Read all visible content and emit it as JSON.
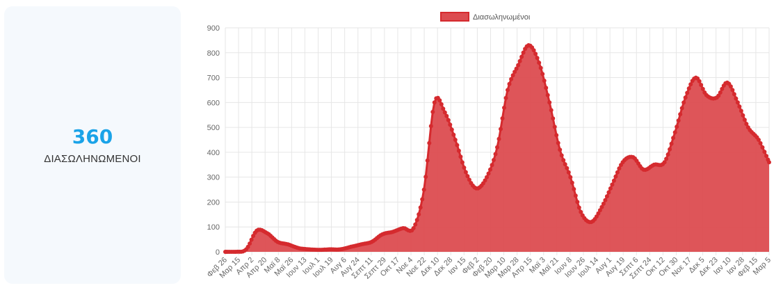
{
  "stat": {
    "value": "360",
    "label": "ΔΙΑΣΩΛΗΝΩΜΕΝΟΙ"
  },
  "colors": {
    "accent": "#1aa3e8",
    "series_fill": "#dc4c50",
    "series_line": "#d52a2e",
    "grid": "#e6e6e6"
  },
  "chart_data": {
    "type": "area",
    "title": "",
    "xlabel": "",
    "ylabel": "",
    "ylim": [
      0,
      900
    ],
    "y_ticks": [
      0,
      100,
      200,
      300,
      400,
      500,
      600,
      700,
      800,
      900
    ],
    "grid": true,
    "legend_position": "top-center",
    "x_tick_labels": [
      "Φεβ 26",
      "Μαρ 15",
      "Απρ 2",
      "Απρ 20",
      "Μαϊ 8",
      "Μαϊ 26",
      "Ιουν 13",
      "Ιουλ 1",
      "Ιουλ 19",
      "Αυγ 6",
      "Αυγ 24",
      "Σεπτ 11",
      "Σεπτ 29",
      "Οκτ 17",
      "Νοε 4",
      "Νοε 22",
      "Δεκ 10",
      "Δεκ 28",
      "Ιαν 15",
      "Φεβ 2",
      "Φεβ 20",
      "Μαρ 10",
      "Μαρ 28",
      "Απρ 15",
      "Μαϊ 3",
      "Μαϊ 21",
      "Ιουν 8",
      "Ιουν 26",
      "Ιουλ 14",
      "Αυγ 1",
      "Αυγ 19",
      "Σεπτ 6",
      "Σεπτ 24",
      "Οκτ 12",
      "Οκτ 30",
      "Νοε 17",
      "Δεκ 5",
      "Δεκ 23",
      "Ιαν 10",
      "Ιαν 28",
      "Φεβ 15",
      "Μαρ 5"
    ],
    "series": [
      {
        "name": "Διασωληνωμένοι",
        "values": [
          0,
          0,
          10,
          85,
          75,
          40,
          30,
          15,
          10,
          8,
          10,
          10,
          20,
          30,
          40,
          70,
          80,
          95,
          95,
          250,
          600,
          560,
          450,
          320,
          255,
          300,
          420,
          650,
          750,
          830,
          760,
          600,
          410,
          300,
          160,
          120,
          180,
          270,
          360,
          380,
          330,
          350,
          360,
          480,
          620,
          700,
          630,
          620,
          680,
          600,
          500,
          450,
          360
        ]
      }
    ]
  }
}
